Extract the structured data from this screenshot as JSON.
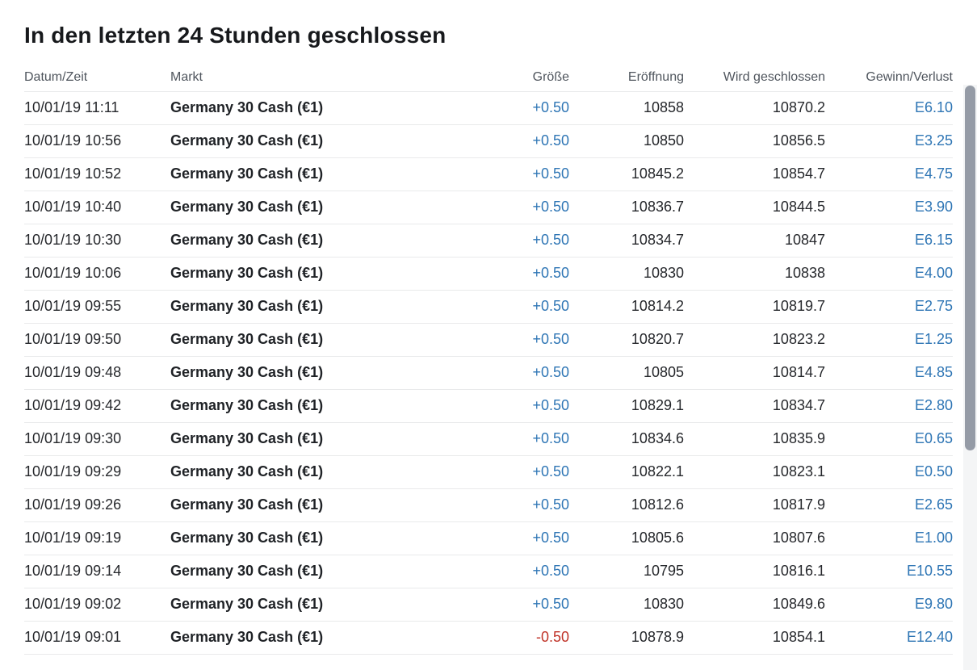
{
  "title": "In den letzten 24 Stunden geschlossen",
  "colors": {
    "accent_blue": "#2f76b5",
    "negative_red": "#c03328",
    "header_gray": "#4f555d",
    "text_dark": "#26282c",
    "row_divider": "#e9eaeb",
    "scrollbar_thumb": "#959ba6"
  },
  "table": {
    "headers": [
      "Datum/Zeit",
      "Markt",
      "Größe",
      "Eröffnung",
      "Wird geschlossen",
      "Gewinn/Verlust"
    ],
    "rows": [
      {
        "datetime": "10/01/19 11:11",
        "market": "Germany 30 Cash (€1)",
        "size": "+0.50",
        "open": "10858",
        "close": "10870.2",
        "pl": "E6.10",
        "negative": false
      },
      {
        "datetime": "10/01/19 10:56",
        "market": "Germany 30 Cash (€1)",
        "size": "+0.50",
        "open": "10850",
        "close": "10856.5",
        "pl": "E3.25",
        "negative": false
      },
      {
        "datetime": "10/01/19 10:52",
        "market": "Germany 30 Cash (€1)",
        "size": "+0.50",
        "open": "10845.2",
        "close": "10854.7",
        "pl": "E4.75",
        "negative": false
      },
      {
        "datetime": "10/01/19 10:40",
        "market": "Germany 30 Cash (€1)",
        "size": "+0.50",
        "open": "10836.7",
        "close": "10844.5",
        "pl": "E3.90",
        "negative": false
      },
      {
        "datetime": "10/01/19 10:30",
        "market": "Germany 30 Cash (€1)",
        "size": "+0.50",
        "open": "10834.7",
        "close": "10847",
        "pl": "E6.15",
        "negative": false
      },
      {
        "datetime": "10/01/19 10:06",
        "market": "Germany 30 Cash (€1)",
        "size": "+0.50",
        "open": "10830",
        "close": "10838",
        "pl": "E4.00",
        "negative": false
      },
      {
        "datetime": "10/01/19 09:55",
        "market": "Germany 30 Cash (€1)",
        "size": "+0.50",
        "open": "10814.2",
        "close": "10819.7",
        "pl": "E2.75",
        "negative": false
      },
      {
        "datetime": "10/01/19 09:50",
        "market": "Germany 30 Cash (€1)",
        "size": "+0.50",
        "open": "10820.7",
        "close": "10823.2",
        "pl": "E1.25",
        "negative": false
      },
      {
        "datetime": "10/01/19 09:48",
        "market": "Germany 30 Cash (€1)",
        "size": "+0.50",
        "open": "10805",
        "close": "10814.7",
        "pl": "E4.85",
        "negative": false
      },
      {
        "datetime": "10/01/19 09:42",
        "market": "Germany 30 Cash (€1)",
        "size": "+0.50",
        "open": "10829.1",
        "close": "10834.7",
        "pl": "E2.80",
        "negative": false
      },
      {
        "datetime": "10/01/19 09:30",
        "market": "Germany 30 Cash (€1)",
        "size": "+0.50",
        "open": "10834.6",
        "close": "10835.9",
        "pl": "E0.65",
        "negative": false
      },
      {
        "datetime": "10/01/19 09:29",
        "market": "Germany 30 Cash (€1)",
        "size": "+0.50",
        "open": "10822.1",
        "close": "10823.1",
        "pl": "E0.50",
        "negative": false
      },
      {
        "datetime": "10/01/19 09:26",
        "market": "Germany 30 Cash (€1)",
        "size": "+0.50",
        "open": "10812.6",
        "close": "10817.9",
        "pl": "E2.65",
        "negative": false
      },
      {
        "datetime": "10/01/19 09:19",
        "market": "Germany 30 Cash (€1)",
        "size": "+0.50",
        "open": "10805.6",
        "close": "10807.6",
        "pl": "E1.00",
        "negative": false
      },
      {
        "datetime": "10/01/19 09:14",
        "market": "Germany 30 Cash (€1)",
        "size": "+0.50",
        "open": "10795",
        "close": "10816.1",
        "pl": "E10.55",
        "negative": false
      },
      {
        "datetime": "10/01/19 09:02",
        "market": "Germany 30 Cash (€1)",
        "size": "+0.50",
        "open": "10830",
        "close": "10849.6",
        "pl": "E9.80",
        "negative": false
      },
      {
        "datetime": "10/01/19 09:01",
        "market": "Germany 30 Cash (€1)",
        "size": "-0.50",
        "open": "10878.9",
        "close": "10854.1",
        "pl": "E12.40",
        "negative": true
      }
    ]
  }
}
